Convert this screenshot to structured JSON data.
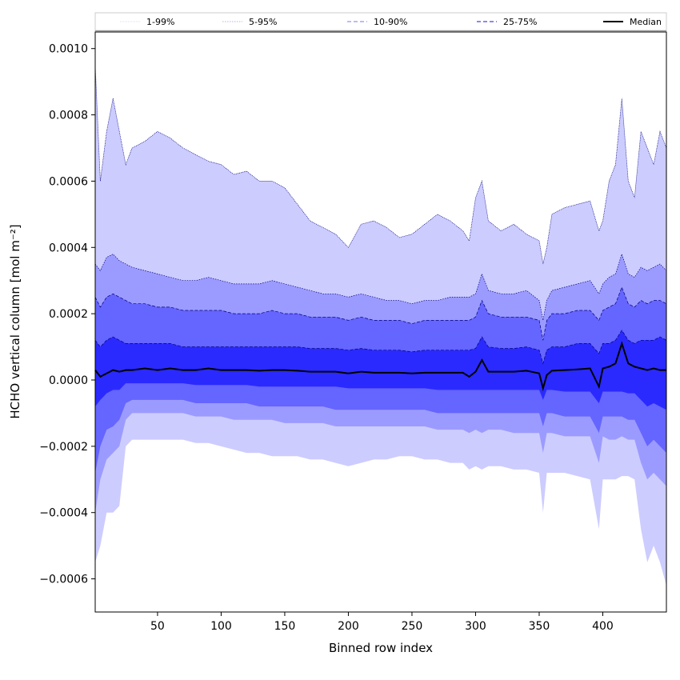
{
  "chart_data": {
    "type": "area",
    "title": "",
    "xlabel": "Binned row index",
    "ylabel": "HCHO vertical column [mol m⁻²]",
    "xlim": [
      1,
      450
    ],
    "ylim": [
      -0.0007,
      0.00105
    ],
    "xticks": [
      50,
      100,
      150,
      200,
      250,
      300,
      350,
      400
    ],
    "xtick_labels": [
      "50",
      "100",
      "150",
      "200",
      "250",
      "300",
      "350",
      "400"
    ],
    "yticks": [
      -0.0006,
      -0.0004,
      -0.0002,
      0.0,
      0.0002,
      0.0004,
      0.0006,
      0.0008,
      0.001
    ],
    "ytick_labels": [
      "−0.0006",
      "−0.0004",
      "−0.0002",
      "0.0000",
      "0.0002",
      "0.0004",
      "0.0006",
      "0.0008",
      "0.0010"
    ],
    "grid": false,
    "legend_position": "top, spanning full width",
    "x": [
      1,
      5,
      10,
      15,
      20,
      25,
      30,
      40,
      50,
      60,
      70,
      80,
      90,
      100,
      110,
      120,
      130,
      140,
      150,
      160,
      170,
      180,
      190,
      200,
      210,
      220,
      230,
      240,
      250,
      260,
      270,
      280,
      290,
      295,
      300,
      305,
      310,
      320,
      330,
      340,
      350,
      353,
      356,
      360,
      370,
      380,
      390,
      397,
      400,
      405,
      410,
      415,
      420,
      425,
      430,
      435,
      440,
      445,
      450
    ],
    "series": [
      {
        "name": "1-99%",
        "upper": [
          0.00095,
          0.0006,
          0.00075,
          0.00085,
          0.00075,
          0.00065,
          0.0007,
          0.00072,
          0.00075,
          0.00073,
          0.0007,
          0.00068,
          0.00066,
          0.00065,
          0.00062,
          0.00063,
          0.0006,
          0.0006,
          0.00058,
          0.00053,
          0.00048,
          0.00046,
          0.00044,
          0.0004,
          0.00047,
          0.00048,
          0.00046,
          0.00043,
          0.00044,
          0.00047,
          0.0005,
          0.00048,
          0.00045,
          0.00042,
          0.00055,
          0.0006,
          0.00048,
          0.00045,
          0.00047,
          0.00044,
          0.00042,
          0.00035,
          0.0004,
          0.0005,
          0.00052,
          0.00053,
          0.00054,
          0.00045,
          0.00048,
          0.0006,
          0.00065,
          0.00085,
          0.0006,
          0.00055,
          0.00075,
          0.0007,
          0.00065,
          0.00075,
          0.0007
        ],
        "lower": [
          -0.00055,
          -0.0005,
          -0.0004,
          -0.0004,
          -0.00038,
          -0.0002,
          -0.00018,
          -0.00018,
          -0.00018,
          -0.00018,
          -0.00018,
          -0.00019,
          -0.00019,
          -0.0002,
          -0.00021,
          -0.00022,
          -0.00022,
          -0.00023,
          -0.00023,
          -0.00023,
          -0.00024,
          -0.00024,
          -0.00025,
          -0.00026,
          -0.00025,
          -0.00024,
          -0.00024,
          -0.00023,
          -0.00023,
          -0.00024,
          -0.00024,
          -0.00025,
          -0.00025,
          -0.00027,
          -0.00026,
          -0.00027,
          -0.00026,
          -0.00026,
          -0.00027,
          -0.00027,
          -0.00028,
          -0.0004,
          -0.00028,
          -0.00028,
          -0.00028,
          -0.00029,
          -0.0003,
          -0.00045,
          -0.0003,
          -0.0003,
          -0.0003,
          -0.00029,
          -0.00029,
          -0.0003,
          -0.00045,
          -0.00055,
          -0.0005,
          -0.00055,
          -0.00062
        ]
      },
      {
        "name": "5-95%",
        "upper": [
          0.00035,
          0.00033,
          0.00037,
          0.00038,
          0.00036,
          0.00035,
          0.00034,
          0.00033,
          0.00032,
          0.00031,
          0.0003,
          0.0003,
          0.00031,
          0.0003,
          0.00029,
          0.00029,
          0.00029,
          0.0003,
          0.00029,
          0.00028,
          0.00027,
          0.00026,
          0.00026,
          0.00025,
          0.00026,
          0.00025,
          0.00024,
          0.00024,
          0.00023,
          0.00024,
          0.00024,
          0.00025,
          0.00025,
          0.00025,
          0.00026,
          0.00032,
          0.00027,
          0.00026,
          0.00026,
          0.00027,
          0.00024,
          0.00018,
          0.00024,
          0.00027,
          0.00028,
          0.00029,
          0.0003,
          0.00026,
          0.00029,
          0.00031,
          0.00032,
          0.00038,
          0.00032,
          0.00031,
          0.00034,
          0.00033,
          0.00034,
          0.00035,
          0.00033
        ],
        "lower": [
          -0.0004,
          -0.0003,
          -0.00024,
          -0.00022,
          -0.0002,
          -0.00012,
          -0.0001,
          -0.0001,
          -0.0001,
          -0.0001,
          -0.0001,
          -0.00011,
          -0.00011,
          -0.00011,
          -0.00012,
          -0.00012,
          -0.00012,
          -0.00012,
          -0.00013,
          -0.00013,
          -0.00013,
          -0.00013,
          -0.00014,
          -0.00014,
          -0.00014,
          -0.00014,
          -0.00014,
          -0.00014,
          -0.00014,
          -0.00014,
          -0.00015,
          -0.00015,
          -0.00015,
          -0.00016,
          -0.00015,
          -0.00016,
          -0.00015,
          -0.00015,
          -0.00016,
          -0.00016,
          -0.00016,
          -0.00022,
          -0.00016,
          -0.00016,
          -0.00017,
          -0.00017,
          -0.00017,
          -0.00025,
          -0.00017,
          -0.00018,
          -0.00018,
          -0.00017,
          -0.00018,
          -0.00018,
          -0.00025,
          -0.0003,
          -0.00028,
          -0.0003,
          -0.00032
        ]
      },
      {
        "name": "10-90%",
        "upper": [
          0.00025,
          0.00022,
          0.00025,
          0.00026,
          0.00025,
          0.00024,
          0.00023,
          0.00023,
          0.00022,
          0.00022,
          0.00021,
          0.00021,
          0.00021,
          0.00021,
          0.0002,
          0.0002,
          0.0002,
          0.00021,
          0.0002,
          0.0002,
          0.00019,
          0.00019,
          0.00019,
          0.00018,
          0.00019,
          0.00018,
          0.00018,
          0.00018,
          0.00017,
          0.00018,
          0.00018,
          0.00018,
          0.00018,
          0.00018,
          0.00019,
          0.00024,
          0.0002,
          0.00019,
          0.00019,
          0.00019,
          0.00018,
          0.00012,
          0.00018,
          0.0002,
          0.0002,
          0.00021,
          0.00021,
          0.00018,
          0.00021,
          0.00022,
          0.00023,
          0.00028,
          0.00023,
          0.00022,
          0.00024,
          0.00023,
          0.00024,
          0.00024,
          0.00023
        ],
        "lower": [
          -0.00028,
          -0.0002,
          -0.00015,
          -0.00014,
          -0.00012,
          -7e-05,
          -6e-05,
          -6e-05,
          -6e-05,
          -6e-05,
          -6e-05,
          -7e-05,
          -7e-05,
          -7e-05,
          -7e-05,
          -7e-05,
          -8e-05,
          -8e-05,
          -8e-05,
          -8e-05,
          -8e-05,
          -8e-05,
          -9e-05,
          -9e-05,
          -9e-05,
          -9e-05,
          -9e-05,
          -9e-05,
          -9e-05,
          -9e-05,
          -0.0001,
          -0.0001,
          -0.0001,
          -0.0001,
          -0.0001,
          -0.0001,
          -0.0001,
          -0.0001,
          -0.0001,
          -0.0001,
          -0.0001,
          -0.00014,
          -0.0001,
          -0.0001,
          -0.00011,
          -0.00011,
          -0.00011,
          -0.00016,
          -0.00011,
          -0.00011,
          -0.00011,
          -0.00011,
          -0.00012,
          -0.00012,
          -0.00016,
          -0.0002,
          -0.00018,
          -0.0002,
          -0.00022
        ]
      },
      {
        "name": "25-75%",
        "upper": [
          0.00012,
          0.0001,
          0.00012,
          0.00013,
          0.00012,
          0.00011,
          0.00011,
          0.00011,
          0.00011,
          0.00011,
          0.0001,
          0.0001,
          0.0001,
          0.0001,
          0.0001,
          0.0001,
          0.0001,
          0.0001,
          0.0001,
          0.0001,
          9.5e-05,
          9.5e-05,
          9.5e-05,
          9e-05,
          9.5e-05,
          9e-05,
          9e-05,
          9e-05,
          8.5e-05,
          9e-05,
          9e-05,
          9e-05,
          9e-05,
          9e-05,
          9.5e-05,
          0.00013,
          0.0001,
          9.5e-05,
          9.5e-05,
          0.0001,
          9e-05,
          5e-05,
          9e-05,
          0.0001,
          0.0001,
          0.00011,
          0.00011,
          8e-05,
          0.00011,
          0.00011,
          0.00012,
          0.00015,
          0.00012,
          0.00011,
          0.00012,
          0.00012,
          0.00012,
          0.00013,
          0.00012
        ],
        "lower": [
          -8e-05,
          -6e-05,
          -4e-05,
          -3e-05,
          -3e-05,
          -1e-05,
          -1e-05,
          -1e-05,
          -1e-05,
          -1e-05,
          -1e-05,
          -1.5e-05,
          -1.5e-05,
          -1.5e-05,
          -1.5e-05,
          -1.5e-05,
          -2e-05,
          -2e-05,
          -2e-05,
          -2e-05,
          -2e-05,
          -2e-05,
          -2e-05,
          -2.5e-05,
          -2.5e-05,
          -2.5e-05,
          -2.5e-05,
          -2.5e-05,
          -2.5e-05,
          -2.5e-05,
          -3e-05,
          -3e-05,
          -3e-05,
          -3e-05,
          -3e-05,
          -3e-05,
          -3e-05,
          -3e-05,
          -3e-05,
          -3e-05,
          -3e-05,
          -6e-05,
          -3e-05,
          -3e-05,
          -3.5e-05,
          -3.5e-05,
          -3.5e-05,
          -7e-05,
          -3.5e-05,
          -3.5e-05,
          -3.5e-05,
          -3.5e-05,
          -4e-05,
          -4e-05,
          -6e-05,
          -8e-05,
          -7e-05,
          -8e-05,
          -9e-05
        ]
      },
      {
        "name": "Median",
        "values": [
          3e-05,
          1e-05,
          2e-05,
          3e-05,
          2.5e-05,
          3e-05,
          3e-05,
          3.5e-05,
          3e-05,
          3.5e-05,
          3e-05,
          3e-05,
          3.5e-05,
          3e-05,
          3e-05,
          3e-05,
          2.8e-05,
          3e-05,
          3e-05,
          2.8e-05,
          2.5e-05,
          2.5e-05,
          2.5e-05,
          2e-05,
          2.5e-05,
          2.2e-05,
          2.2e-05,
          2.2e-05,
          2e-05,
          2.2e-05,
          2.2e-05,
          2.2e-05,
          2.2e-05,
          1e-05,
          2.5e-05,
          6e-05,
          2.5e-05,
          2.5e-05,
          2.5e-05,
          2.8e-05,
          2e-05,
          -2.5e-05,
          1.5e-05,
          2.8e-05,
          3e-05,
          3.2e-05,
          3.5e-05,
          -2e-05,
          3.5e-05,
          4e-05,
          5e-05,
          0.00011,
          5e-05,
          4e-05,
          3.5e-05,
          3e-05,
          3.5e-05,
          3e-05,
          3e-05
        ]
      }
    ]
  },
  "legend": {
    "items": [
      {
        "label": "1-99%",
        "color": "#ccccff",
        "dash": "1,1",
        "width": 0.8
      },
      {
        "label": "5-95%",
        "color": "#9999ee",
        "dash": "1.5,1.5",
        "width": 0.8
      },
      {
        "label": "10-90%",
        "color": "#7777ee",
        "dash": "5,3",
        "width": 1
      },
      {
        "label": "25-75%",
        "color": "#4444dd",
        "dash": "5,3",
        "width": 1.2
      },
      {
        "label": "Median",
        "color": "#000000",
        "dash": "",
        "width": 2
      }
    ]
  },
  "colors": {
    "band_1_99": "#ccccff",
    "band_5_95": "#9b9bff",
    "band_10_90": "#6565ff",
    "band_25_75": "#2a2aff",
    "band_edge": "#000080",
    "median_line": "#000000"
  }
}
